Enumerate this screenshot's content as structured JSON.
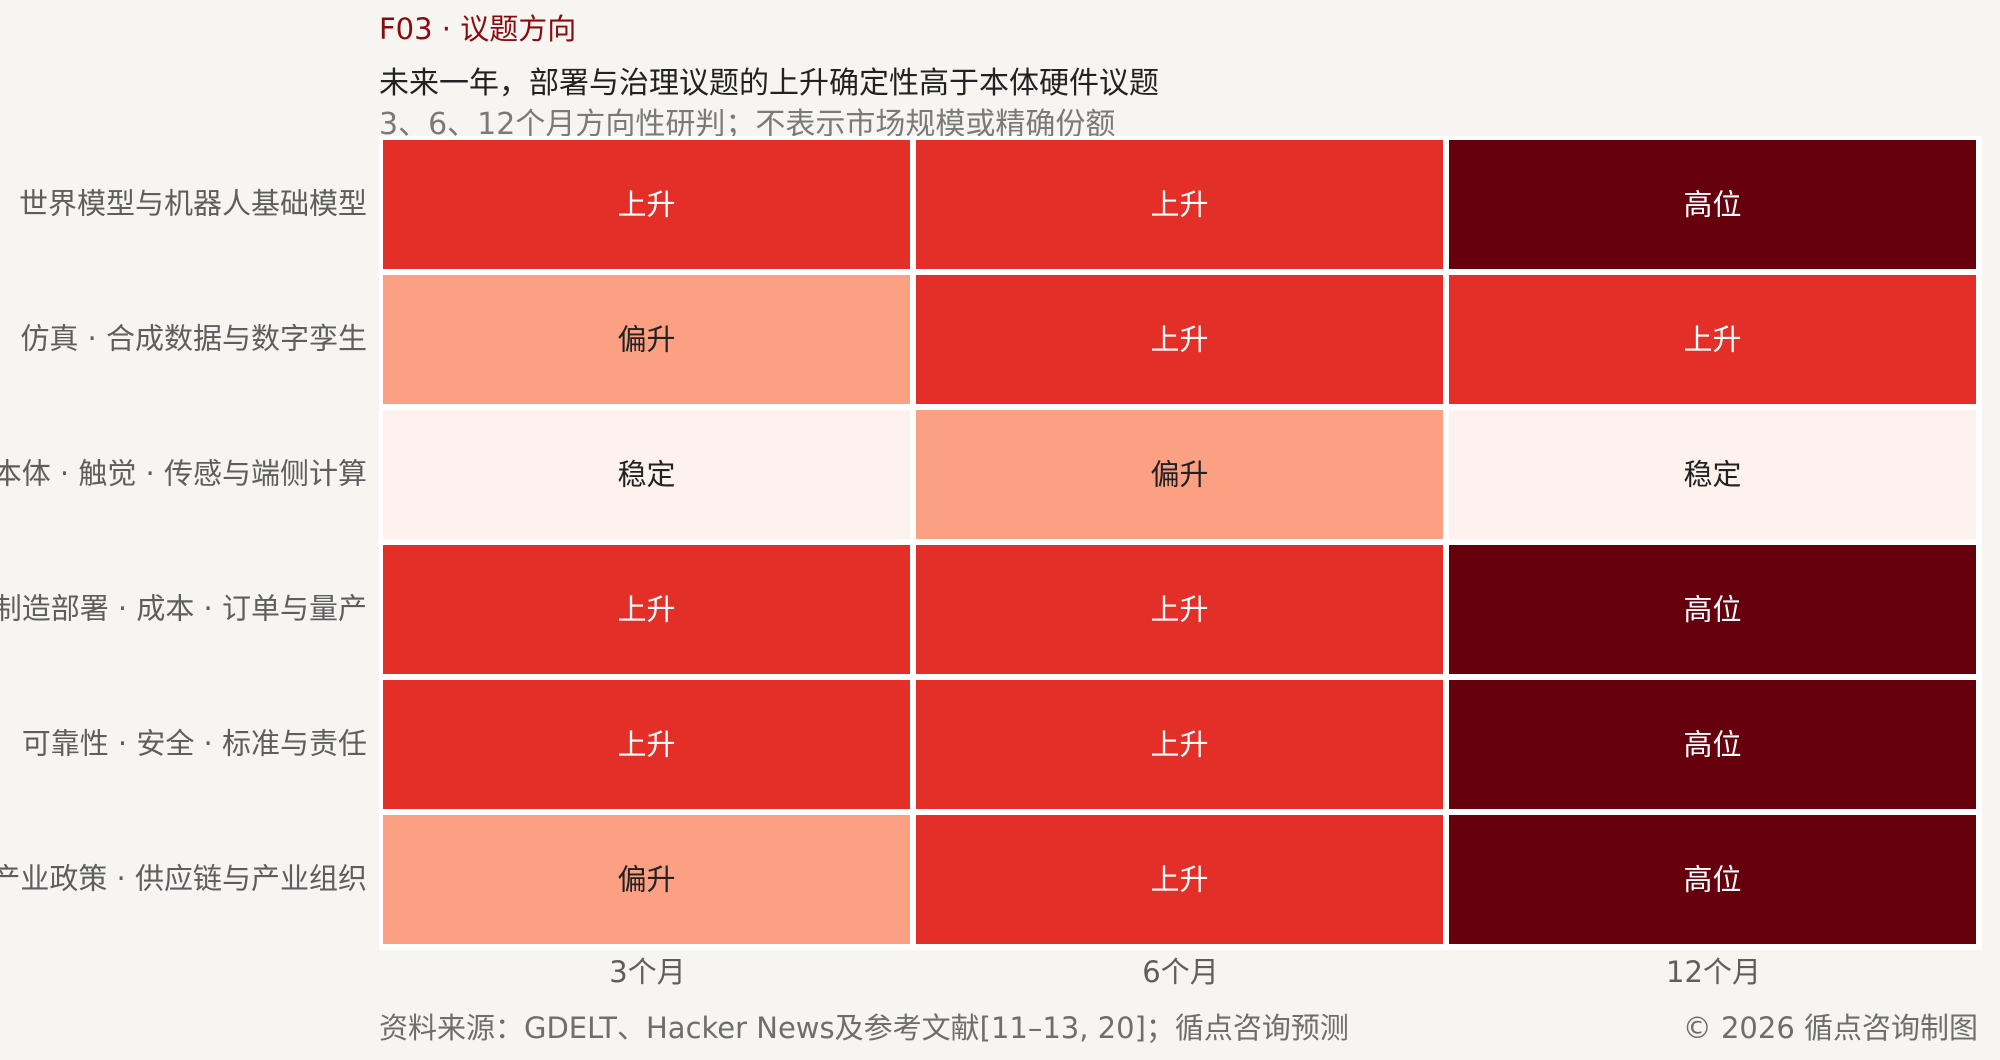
{
  "header": {
    "kicker": "F03 · 议题方向",
    "headline": "未来一年，部署与治理议题的上升确定性高于本体硬件议题",
    "subtitle": "3、6、12个月方向性研判；不表示市场规模或精确份额"
  },
  "footer": {
    "source": "资料来源：GDELT、Hacker News及参考文献[11–13, 20]；循点咨询预测",
    "credit": "© 2026 循点咨询制图"
  },
  "colors": {
    "稳定": "#fdf2ed",
    "偏升": "#fca084",
    "上升": "#e32f28",
    "高位": "#67000d",
    "text_dark": "#222222",
    "text_light": "#ffffff"
  },
  "chart_data": {
    "type": "heatmap",
    "x": [
      "3个月",
      "6个月",
      "12个月"
    ],
    "y": [
      "世界模型与机器人基础模型",
      "仿真 · 合成数据与数字孪生",
      "本体 · 触觉 · 传感与端侧计算",
      "制造部署 · 成本 · 订单与量产",
      "可靠性 · 安全 · 标准与责任",
      "产业政策 · 供应链与产业组织"
    ],
    "levels": [
      "稳定",
      "偏升",
      "上升",
      "高位"
    ],
    "values": [
      [
        "上升",
        "上升",
        "高位"
      ],
      [
        "偏升",
        "上升",
        "上升"
      ],
      [
        "稳定",
        "偏升",
        "稳定"
      ],
      [
        "上升",
        "上升",
        "高位"
      ],
      [
        "上升",
        "上升",
        "高位"
      ],
      [
        "偏升",
        "上升",
        "高位"
      ]
    ]
  }
}
